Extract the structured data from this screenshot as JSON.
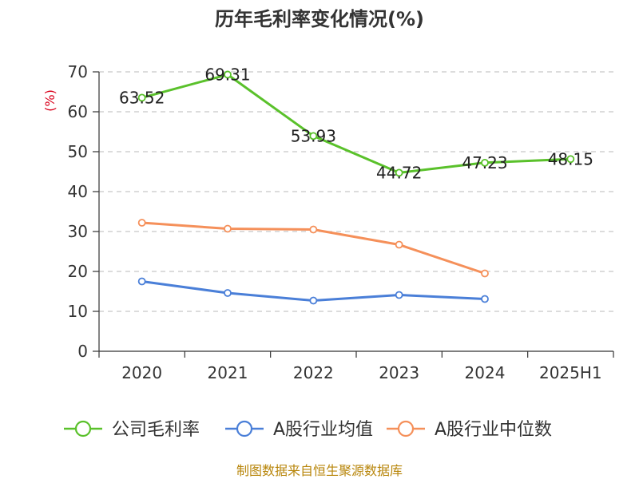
{
  "chart_data": {
    "type": "line",
    "title": "历年毛利率变化情况(%)",
    "ylabel": "(%)",
    "categories": [
      "2020",
      "2021",
      "2022",
      "2023",
      "2024",
      "2025H1"
    ],
    "ylim": [
      0,
      70
    ],
    "yticks": [
      0,
      10,
      20,
      30,
      40,
      50,
      60,
      70
    ],
    "grid": "horizontal-dashed",
    "legend_position": "bottom",
    "series": [
      {
        "name": "公司毛利率",
        "color": "#5ac12b",
        "values": [
          63.52,
          69.31,
          53.93,
          44.72,
          47.23,
          48.15
        ],
        "labels": [
          "63.52",
          "69.31",
          "53.93",
          "44.72",
          "47.23",
          "48.15"
        ]
      },
      {
        "name": "A股行业均值",
        "color": "#4a7fd8",
        "values": [
          17.5,
          14.6,
          12.7,
          14.1,
          13.1,
          null
        ]
      },
      {
        "name": "A股行业中位数",
        "color": "#f5905a",
        "values": [
          32.2,
          30.7,
          30.5,
          26.7,
          19.5,
          null
        ]
      }
    ],
    "source": "制图数据来自恒生聚源数据库"
  }
}
